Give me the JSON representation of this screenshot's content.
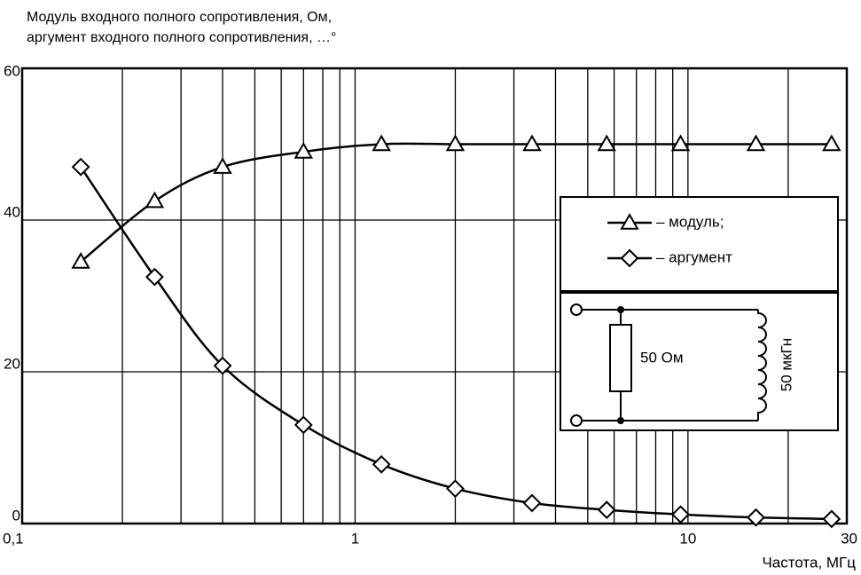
{
  "chart_data": {
    "type": "line",
    "title": [
      "Модуль входного полного сопротивления, Ом,",
      "аргумент входного полного сопротивления, …°"
    ],
    "x_label": "Частота, МГц",
    "x": [
      0.15,
      0.25,
      0.4,
      0.7,
      1.2,
      2,
      3.4,
      5.7,
      9.5,
      16,
      27
    ],
    "series": [
      {
        "name": "– модуль;",
        "marker": "triangle",
        "color": "#000000",
        "values": [
          34.5,
          42.5,
          47,
          49,
          50,
          50,
          50,
          50,
          50,
          50,
          50
        ]
      },
      {
        "name": "– аргумент",
        "marker": "diamond",
        "color": "#000000",
        "values": [
          47,
          32.5,
          20.8,
          13,
          7.8,
          4.6,
          2.7,
          1.8,
          1.2,
          0.8,
          0.6
        ]
      }
    ],
    "xscale": "log",
    "xlim": [
      0.1,
      30
    ],
    "xticks": [
      {
        "value": 0.1,
        "label": "0,1"
      },
      1,
      10,
      30
    ],
    "xminor": [
      0.2,
      0.3,
      0.4,
      0.5,
      0.6,
      0.7,
      0.8,
      0.9,
      2,
      3,
      4,
      5,
      6,
      7,
      8,
      9,
      20
    ],
    "ylim": [
      0,
      60
    ],
    "yticks": [
      0,
      20,
      40,
      60
    ],
    "grid": true,
    "annotations": [
      "50 Ом",
      "50 мкГн"
    ]
  }
}
